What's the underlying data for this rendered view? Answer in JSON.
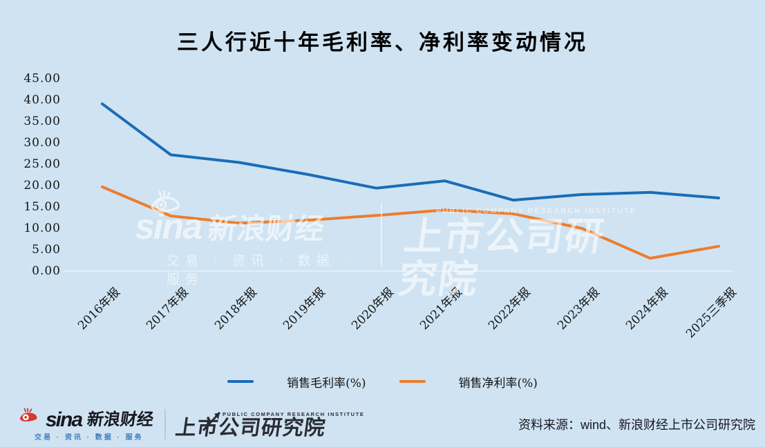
{
  "page": {
    "background_color": "#cfe3f2"
  },
  "chart_data": {
    "type": "line",
    "title": "三人行近十年毛利率、净利率变动情况",
    "categories": [
      "2016年报",
      "2017年报",
      "2018年报",
      "2019年报",
      "2020年报",
      "2021年报",
      "2022年报",
      "2023年报",
      "2024年报",
      "2025三季报"
    ],
    "series": [
      {
        "name": "销售毛利率(%)",
        "color": "#1a6cb8",
        "values": [
          39.1,
          27.2,
          25.4,
          22.6,
          19.4,
          21.1,
          16.6,
          17.9,
          18.4,
          17.1
        ]
      },
      {
        "name": "销售净利率(%)",
        "color": "#ec7d2d",
        "values": [
          19.7,
          12.9,
          11.2,
          11.9,
          13.0,
          14.3,
          13.4,
          10.0,
          3.0,
          5.8
        ]
      }
    ],
    "y_axis": {
      "min": 0,
      "max": 45,
      "step": 5,
      "tick_format": "two_decimals"
    },
    "grid": "none",
    "legend_position": "bottom",
    "axis_line_color": "#e9f1f8"
  },
  "watermark": {
    "brand": "sina",
    "brand_cn": "新浪财经",
    "tagline": "交易 · 资讯 · 数据 · 服务",
    "institute_en": "PUBLIC COMPANY RESEARCH INSTITUTE",
    "institute": "上市公司研究院"
  },
  "footer": {
    "sina_word": "sina",
    "sina_cn": "新浪财经",
    "sina_tagline": "交易 · 资讯 · 数据 · 服务",
    "institute_en": "PUBLIC COMPANY RESEARCH INSTITUTE",
    "institute": "上市公司研究院",
    "source": "资料来源：wind、新浪财经上市公司研究院",
    "sina_red": "#d53a31"
  }
}
